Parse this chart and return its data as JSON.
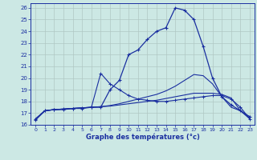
{
  "background_color": "#cce8e4",
  "grid_color": "#b0c8c4",
  "line_color": "#1a2fa0",
  "title": "Graphe des températures (°c)",
  "xlim": [
    -0.5,
    23.5
  ],
  "ylim": [
    16,
    26.4
  ],
  "xticks": [
    0,
    1,
    2,
    3,
    4,
    5,
    6,
    7,
    8,
    9,
    10,
    11,
    12,
    13,
    14,
    15,
    16,
    17,
    18,
    19,
    20,
    21,
    22,
    23
  ],
  "yticks": [
    16,
    17,
    18,
    19,
    20,
    21,
    22,
    23,
    24,
    25,
    26
  ],
  "line1_x": [
    0,
    1,
    2,
    3,
    4,
    5,
    6,
    7,
    8,
    9,
    10,
    11,
    12,
    13,
    14,
    15,
    16,
    17,
    18,
    19,
    20,
    21,
    22,
    23
  ],
  "line1_y": [
    16.4,
    17.2,
    17.3,
    17.3,
    17.4,
    17.4,
    17.5,
    17.5,
    19.0,
    19.8,
    22.0,
    22.4,
    23.3,
    24.0,
    24.3,
    26.0,
    25.8,
    25.0,
    22.7,
    20.0,
    18.4,
    17.7,
    17.2,
    16.7
  ],
  "line2_x": [
    0,
    1,
    2,
    3,
    4,
    5,
    6,
    7,
    8,
    9,
    10,
    11,
    12,
    13,
    14,
    15,
    16,
    17,
    18,
    19,
    20,
    21,
    22,
    23
  ],
  "line2_y": [
    16.5,
    17.2,
    17.3,
    17.35,
    17.4,
    17.45,
    17.5,
    17.55,
    17.6,
    17.7,
    17.8,
    17.9,
    18.0,
    18.1,
    18.25,
    18.4,
    18.55,
    18.7,
    18.7,
    18.7,
    18.6,
    18.3,
    17.2,
    16.5
  ],
  "line3_x": [
    0,
    1,
    2,
    3,
    4,
    5,
    6,
    7,
    8,
    9,
    10,
    11,
    12,
    13,
    14,
    15,
    16,
    17,
    18,
    19,
    20,
    21,
    22,
    23
  ],
  "line3_y": [
    16.5,
    17.2,
    17.3,
    17.35,
    17.4,
    17.45,
    17.5,
    17.55,
    17.65,
    17.8,
    18.0,
    18.2,
    18.4,
    18.6,
    18.9,
    19.3,
    19.8,
    20.3,
    20.2,
    19.5,
    18.4,
    17.5,
    17.2,
    16.6
  ],
  "line4_x": [
    0,
    1,
    2,
    3,
    4,
    5,
    6,
    7,
    8,
    9,
    10,
    11,
    12,
    13,
    14,
    15,
    16,
    17,
    18,
    19,
    20,
    21,
    22,
    23
  ],
  "line4_y": [
    16.5,
    17.2,
    17.3,
    17.35,
    17.4,
    17.45,
    17.5,
    20.4,
    19.5,
    19.0,
    18.5,
    18.2,
    18.1,
    18.0,
    18.0,
    18.1,
    18.2,
    18.3,
    18.4,
    18.5,
    18.5,
    18.2,
    17.5,
    16.5
  ]
}
